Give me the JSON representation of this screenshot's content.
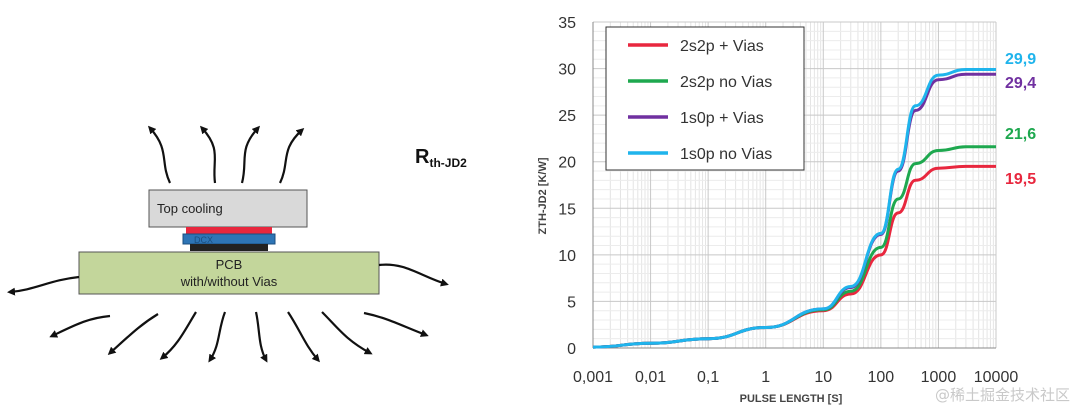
{
  "diagram": {
    "label_main": "R",
    "label_sub": "th-JD2",
    "top_cooling": "Top cooling",
    "chip": "DCX",
    "pcb_line1": "PCB",
    "pcb_line2": "with/without Vias",
    "colors": {
      "pcb": "#c3d69b",
      "cooling": "#d9d9d9",
      "chip_red": "#e8273e",
      "chip_blue": "#2e75b6"
    }
  },
  "chart_data": {
    "type": "line",
    "xscale": "log",
    "xlabel": "PULSE LENGTH [S]",
    "ylabel": "ZTH-JD2 [K/W]",
    "xlim": [
      0.001,
      10000
    ],
    "ylim": [
      0,
      35
    ],
    "xticks": [
      "0,001",
      "0,01",
      "0,1",
      "1",
      "10",
      "100",
      "1000",
      "10000"
    ],
    "yticks": [
      "0",
      "5",
      "10",
      "15",
      "20",
      "25",
      "30",
      "35"
    ],
    "grid": true,
    "legend": "top-left",
    "series": [
      {
        "name": "2s2p + Vias",
        "color": "#e8273e",
        "final_label": "19,5",
        "x": [
          0.001,
          0.01,
          0.1,
          1,
          10,
          30,
          100,
          200,
          400,
          1000,
          3000,
          10000
        ],
        "y": [
          0.1,
          0.5,
          1.0,
          2.2,
          4.0,
          5.8,
          10.0,
          14.5,
          18.0,
          19.3,
          19.5,
          19.5
        ]
      },
      {
        "name": "2s2p no  Vias",
        "color": "#1ea84f",
        "final_label": "21,6",
        "x": [
          0.001,
          0.01,
          0.1,
          1,
          10,
          30,
          100,
          200,
          400,
          1000,
          3000,
          10000
        ],
        "y": [
          0.1,
          0.5,
          1.0,
          2.2,
          4.1,
          6.1,
          10.8,
          16.0,
          19.8,
          21.2,
          21.6,
          21.6
        ]
      },
      {
        "name": "1s0p + Vias",
        "color": "#7030a0",
        "final_label": "29,4",
        "x": [
          0.001,
          0.01,
          0.1,
          1,
          10,
          30,
          100,
          200,
          400,
          1000,
          3000,
          10000
        ],
        "y": [
          0.1,
          0.5,
          1.0,
          2.2,
          4.2,
          6.5,
          12.2,
          19.0,
          25.5,
          28.8,
          29.4,
          29.4
        ]
      },
      {
        "name": "1s0p no Vias",
        "color": "#1fb4ec",
        "final_label": "29,9",
        "x": [
          0.001,
          0.01,
          0.1,
          1,
          10,
          30,
          100,
          200,
          400,
          1000,
          3000,
          10000
        ],
        "y": [
          0.1,
          0.5,
          1.0,
          2.2,
          4.2,
          6.6,
          12.3,
          19.2,
          26.0,
          29.3,
          29.9,
          29.9
        ]
      }
    ]
  },
  "watermark": "@稀土掘金技术社区"
}
